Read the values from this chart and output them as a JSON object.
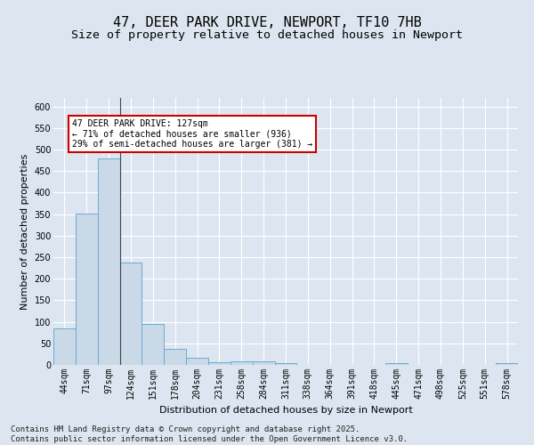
{
  "title": "47, DEER PARK DRIVE, NEWPORT, TF10 7HB",
  "subtitle": "Size of property relative to detached houses in Newport",
  "xlabel": "Distribution of detached houses by size in Newport",
  "ylabel": "Number of detached properties",
  "categories": [
    "44sqm",
    "71sqm",
    "97sqm",
    "124sqm",
    "151sqm",
    "178sqm",
    "204sqm",
    "231sqm",
    "258sqm",
    "284sqm",
    "311sqm",
    "338sqm",
    "364sqm",
    "391sqm",
    "418sqm",
    "445sqm",
    "471sqm",
    "498sqm",
    "525sqm",
    "551sqm",
    "578sqm"
  ],
  "values": [
    85,
    352,
    480,
    237,
    96,
    37,
    16,
    7,
    8,
    8,
    5,
    0,
    0,
    0,
    0,
    5,
    0,
    0,
    0,
    0,
    5
  ],
  "bar_color": "#c9d9e8",
  "bar_edge_color": "#6aaad4",
  "annotation_text": "47 DEER PARK DRIVE: 127sqm\n← 71% of detached houses are smaller (936)\n29% of semi-detached houses are larger (381) →",
  "annotation_box_color": "#ffffff",
  "annotation_box_edge_color": "#cc0000",
  "vline_x": 2.5,
  "ylim": [
    0,
    620
  ],
  "yticks": [
    0,
    50,
    100,
    150,
    200,
    250,
    300,
    350,
    400,
    450,
    500,
    550,
    600
  ],
  "background_color": "#dde6f0",
  "plot_background_color": "#dde6f0",
  "grid_color": "#ffffff",
  "title_fontsize": 11,
  "subtitle_fontsize": 9.5,
  "axis_label_fontsize": 8,
  "tick_fontsize": 7,
  "annotation_fontsize": 7,
  "footer_text": "Contains HM Land Registry data © Crown copyright and database right 2025.\nContains public sector information licensed under the Open Government Licence v3.0.",
  "footer_fontsize": 6.5
}
